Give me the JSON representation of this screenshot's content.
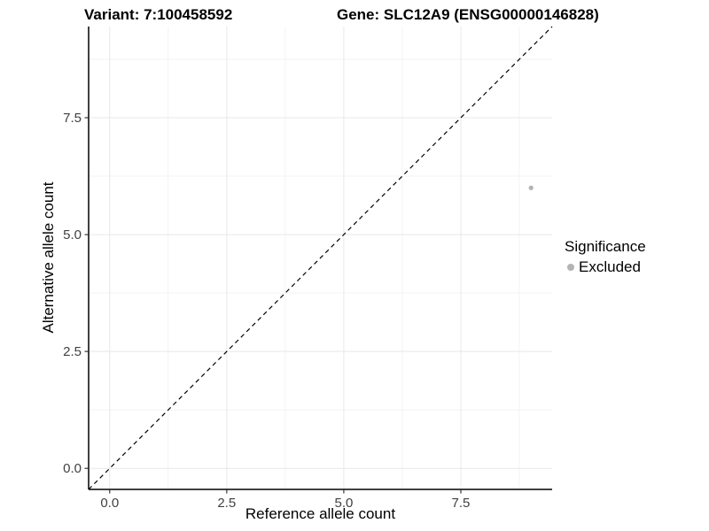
{
  "chart_data": {
    "type": "scatter",
    "title_left": "Variant: 7:100458592",
    "title_right": "Gene: SLC12A9 (ENSG00000146828)",
    "xlabel": "Reference allele count",
    "ylabel": "Alternative allele count",
    "xlim": [
      -0.45,
      9.45
    ],
    "ylim": [
      -0.45,
      9.45
    ],
    "x_ticks": [
      0,
      2.5,
      5,
      7.5
    ],
    "y_ticks": [
      0,
      2.5,
      5,
      7.5
    ],
    "x_tick_labels": [
      "0.0",
      "2.5",
      "5.0",
      "7.5"
    ],
    "y_tick_labels": [
      "0.0",
      "2.5",
      "5.0",
      "7.5"
    ],
    "x_minor_ticks": [
      1.25,
      3.75,
      6.25,
      8.75
    ],
    "y_minor_ticks": [
      1.25,
      3.75,
      6.25,
      8.75
    ],
    "grid": true,
    "legend_position": "right",
    "series": [
      {
        "name": "Excluded",
        "color": "#b3b3b3",
        "points": [
          {
            "x": 9,
            "y": 6
          }
        ]
      }
    ],
    "reference_line": {
      "kind": "identity",
      "style": "dashed",
      "color": "#000000",
      "from": [
        -0.45,
        -0.45
      ],
      "to": [
        9.45,
        9.45
      ]
    },
    "legend": {
      "title": "Significance",
      "entries": [
        {
          "label": "Excluded",
          "color": "#b3b3b3",
          "marker": "circle"
        }
      ]
    }
  },
  "colors": {
    "background": "#ffffff",
    "axis_line": "#000000",
    "tick_mark": "#333333",
    "tick_text": "#404040",
    "grid_major": "#e8e8e8",
    "grid_minor": "#f3f3f3"
  }
}
